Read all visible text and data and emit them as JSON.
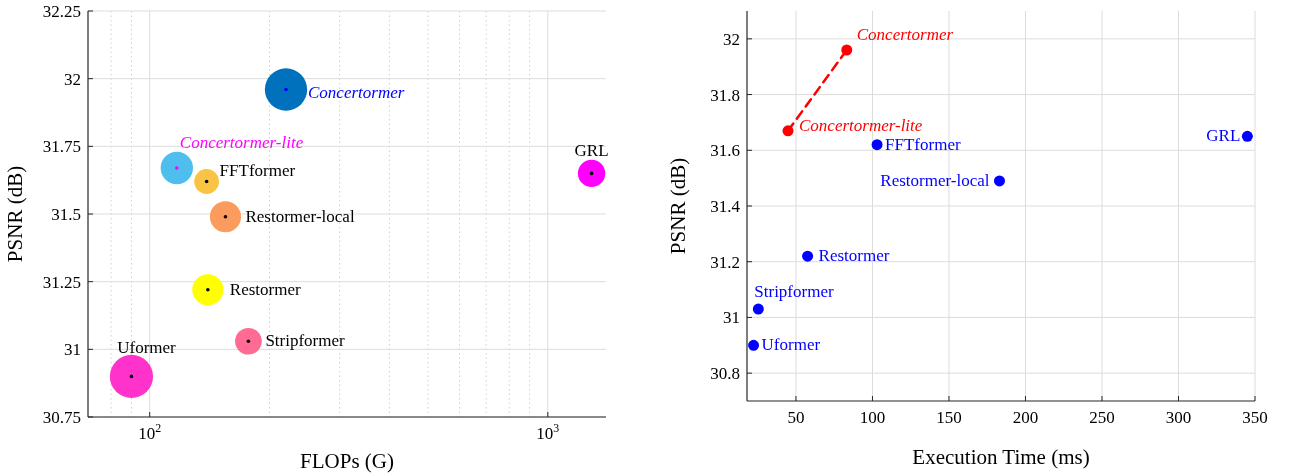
{
  "chart_data": [
    {
      "type": "bubble",
      "xlabel": "FLOPs (G)",
      "ylabel": "PSNR (dB)",
      "log": "x",
      "xlim": [
        70,
        1400
      ],
      "xticks": [
        {
          "value": 100,
          "label": "10$^{2}$"
        },
        {
          "value": 1000,
          "label": "10$^{3}$"
        }
      ],
      "ylim": [
        30.75,
        32.25
      ],
      "yticks": [
        30.75,
        31,
        31.25,
        31.5,
        31.75,
        32,
        32.25
      ],
      "grid": true,
      "series": [
        {
          "name": "Uformer",
          "color": "#ff33cc",
          "x": [
            90
          ],
          "values": [
            30.9
          ],
          "sizes": [
            1
          ]
        },
        {
          "name": "Concertormer-lite",
          "color": "#4dbeee",
          "x": [
            117
          ],
          "values": [
            31.67
          ],
          "sizes": [
            0.56
          ]
        },
        {
          "name": "FFTformer",
          "color": "#f9c443",
          "x": [
            139
          ],
          "values": [
            31.62
          ],
          "sizes": [
            0.33
          ]
        },
        {
          "name": "Restormer-local",
          "color": "#fb9c5e",
          "x": [
            155
          ],
          "values": [
            31.49
          ],
          "sizes": [
            0.52
          ]
        },
        {
          "name": "Restormer",
          "color": "#ffff00",
          "x": [
            140
          ],
          "values": [
            31.22
          ],
          "sizes": [
            0.52
          ]
        },
        {
          "name": "Stripformer",
          "color": "#ff6b93",
          "x": [
            177
          ],
          "values": [
            31.03
          ],
          "sizes": [
            0.38
          ]
        },
        {
          "name": "Concertormer",
          "color": "#0072bd",
          "x": [
            220
          ],
          "values": [
            31.96
          ],
          "sizes": [
            0.96
          ]
        },
        {
          "name": "GRL",
          "color": "#ff00ff",
          "x": [
            1288
          ],
          "values": [
            31.65
          ],
          "sizes": [
            0.4
          ]
        }
      ]
    },
    {
      "type": "scatter",
      "xlabel": "Execution Time (ms)",
      "ylabel": "PSNR (dB)",
      "xlim": [
        18,
        350
      ],
      "xticks": [
        50,
        100,
        150,
        200,
        250,
        300,
        350
      ],
      "ylim": [
        30.7,
        32.1
      ],
      "yticks": [
        30.8,
        31,
        31.2,
        31.4,
        31.6,
        31.8,
        32
      ],
      "grid": true,
      "marker": "circle",
      "series": [
        {
          "type": "line",
          "color": "#ff0000",
          "line_style": "dashed",
          "marker": "none",
          "x": [
            44.8,
            83.2
          ],
          "values": [
            31.67,
            31.96
          ]
        },
        {
          "name": "Uformer",
          "color": "#0000ff",
          "x": [
            22.3
          ],
          "values": [
            30.9
          ]
        },
        {
          "name": "Stripformer",
          "color": "#0000ff",
          "x": [
            25.4
          ],
          "values": [
            31.03
          ]
        },
        {
          "name": "Restormer",
          "color": "#0000ff",
          "x": [
            57.6
          ],
          "values": [
            31.22
          ]
        },
        {
          "name": "Restormer-local",
          "color": "#0000ff",
          "x": [
            183
          ],
          "values": [
            31.49
          ]
        },
        {
          "name": "FFTformer",
          "color": "#0000ff",
          "x": [
            103
          ],
          "values": [
            31.62
          ]
        },
        {
          "name": "GRL",
          "color": "#0000ff",
          "x": [
            345
          ],
          "values": [
            31.65
          ]
        },
        {
          "name": "Concertormer-lite",
          "color": "#ff0000",
          "x": [
            44.8
          ],
          "values": [
            31.67
          ]
        },
        {
          "name": "Concertormer",
          "color": "#ff0000",
          "x": [
            83.2
          ],
          "values": [
            31.96
          ]
        }
      ]
    }
  ]
}
